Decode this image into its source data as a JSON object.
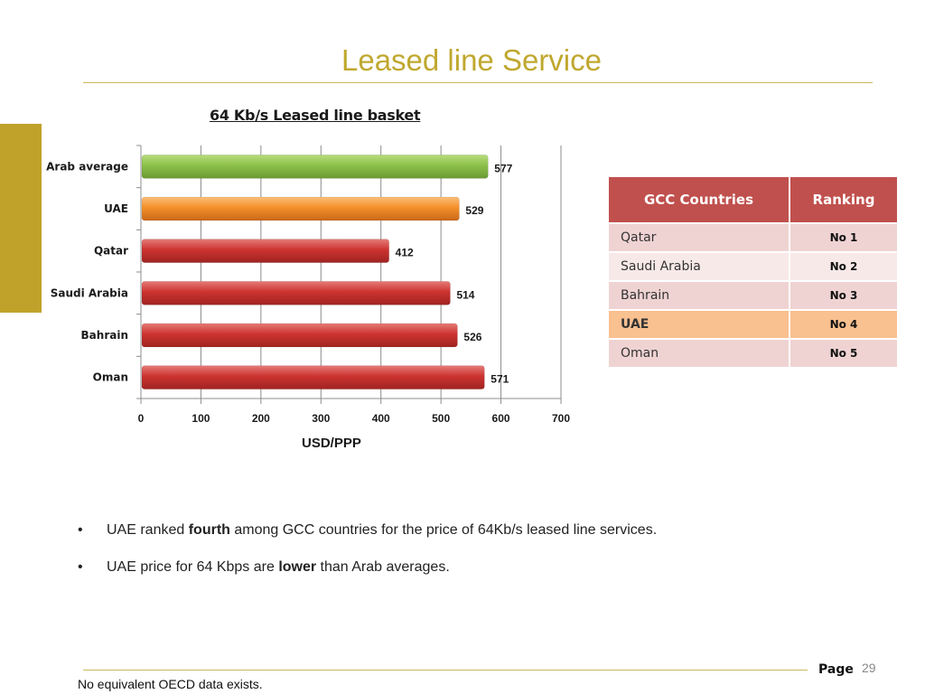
{
  "slide": {
    "title": "Leased line Service",
    "page_label": "Page",
    "page_number": "29",
    "footnote": "No equivalent OECD data exists."
  },
  "chart_data": {
    "type": "bar",
    "orientation": "horizontal",
    "title": "64 Kb/s Leased line basket",
    "xlabel": "USD/PPP",
    "ylabel": "",
    "xlim": [
      0,
      700
    ],
    "xticks": [
      0,
      100,
      200,
      300,
      400,
      500,
      600,
      700
    ],
    "grid": true,
    "categories": [
      "Arab average",
      "UAE",
      "Qatar",
      "Saudi Arabia",
      "Bahrain",
      "Oman"
    ],
    "values": [
      577,
      529,
      412,
      514,
      526,
      571
    ],
    "bar_colors": [
      "#8cc04a",
      "#f4902a",
      "#cc3330",
      "#cc3330",
      "#cc3330",
      "#cc3330"
    ]
  },
  "ranking_table": {
    "headers": [
      "GCC Countries",
      "Ranking"
    ],
    "rows": [
      {
        "country": "Qatar",
        "rank": "No 1",
        "highlight": false
      },
      {
        "country": "Saudi Arabia",
        "rank": "No 2",
        "highlight": false
      },
      {
        "country": "Bahrain",
        "rank": "No 3",
        "highlight": false
      },
      {
        "country": "UAE",
        "rank": "No 4",
        "highlight": true
      },
      {
        "country": "Oman",
        "rank": "No 5",
        "highlight": false
      }
    ],
    "header_color": "#c0504d",
    "highlight_color": "#f9c090"
  },
  "bullets": [
    {
      "marker": "•",
      "before": "UAE ranked ",
      "bold": "fourth",
      "after": " among GCC countries for the price of 64Kb/s leased line services."
    },
    {
      "marker": "•",
      "before": "UAE price for 64 Kbps are ",
      "bold": "lower",
      "after": " than Arab averages."
    }
  ]
}
